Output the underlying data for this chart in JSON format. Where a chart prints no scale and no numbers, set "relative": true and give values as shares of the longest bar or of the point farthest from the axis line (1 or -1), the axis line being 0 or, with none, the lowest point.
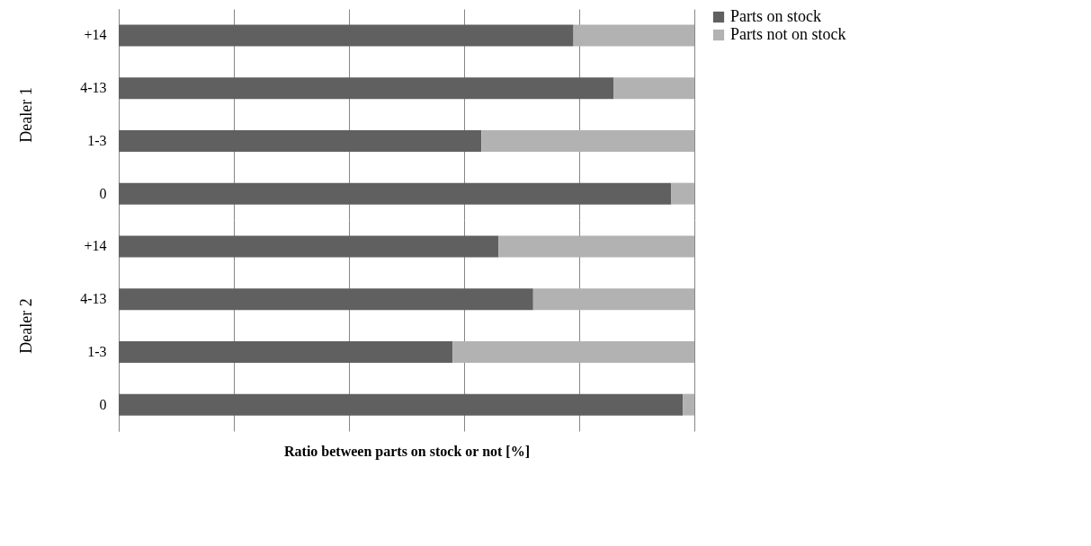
{
  "chart_data": [
    {
      "type": "bar",
      "orientation": "horizontal",
      "stacked": true,
      "relative": true,
      "ylabel": "Dealer 1",
      "categories": [
        "+14",
        "4-13",
        "1-3",
        "0"
      ],
      "series": [
        {
          "name": "Parts on stock",
          "color": "#606060",
          "values": [
            0.79,
            0.86,
            0.63,
            0.96
          ]
        },
        {
          "name": "Parts not on stock",
          "color": "#b2b2b2",
          "values": [
            0.21,
            0.14,
            0.37,
            0.04
          ]
        }
      ],
      "grid": "x",
      "legend": "right",
      "tick_labels": "y"
    },
    {
      "type": "bar",
      "orientation": "horizontal",
      "stacked": true,
      "relative": true,
      "ylabel": "Dealer 2",
      "xlabel": "Ratio between parts on stock or not [%]",
      "categories": [
        "+14",
        "4-13",
        "1-3",
        "0"
      ],
      "series": [
        {
          "name": "Parts on stock",
          "color": "#606060",
          "values": [
            0.66,
            0.72,
            0.58,
            0.98
          ]
        },
        {
          "name": "Parts not on stock",
          "color": "#b2b2b2",
          "values": [
            0.34,
            0.28,
            0.42,
            0.02
          ]
        }
      ],
      "grid": "x",
      "legend": "right",
      "tick_labels": "y"
    }
  ]
}
